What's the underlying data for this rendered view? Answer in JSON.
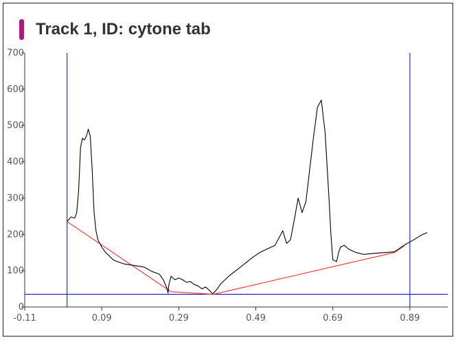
{
  "title": "Track 1, ID: cytone tab",
  "colors": {
    "title_bar": "#b0187c",
    "trace": "#000000",
    "baseline": "#ff3b3b",
    "markers": "#0000cc"
  },
  "chart_data": {
    "type": "line",
    "xlim": [
      -0.11,
      0.99
    ],
    "ylim": [
      0,
      700
    ],
    "xticks": [
      -0.11,
      0.09,
      0.29,
      0.49,
      0.69,
      0.89
    ],
    "xtick_labels": [
      "-0.11",
      "0.09",
      "0.29",
      "0.49",
      "0.69",
      "0.89"
    ],
    "yticks": [
      0,
      100,
      200,
      300,
      400,
      500,
      600,
      700
    ],
    "grid": false,
    "vertical_markers": [
      0.0,
      0.89
    ],
    "horizontal_marker": 35,
    "baseline": {
      "x": [
        0.0,
        0.27,
        0.38,
        0.85,
        0.875
      ],
      "y": [
        235,
        42,
        35,
        150,
        168
      ]
    },
    "series": [
      {
        "x": [
          0.0,
          0.01,
          0.02,
          0.025,
          0.03,
          0.035,
          0.04,
          0.045,
          0.05,
          0.055,
          0.06,
          0.065,
          0.07,
          0.075,
          0.08,
          0.085,
          0.09,
          0.1,
          0.11,
          0.12,
          0.13,
          0.15,
          0.17,
          0.2,
          0.22,
          0.24,
          0.25,
          0.26,
          0.262,
          0.264,
          0.27,
          0.28,
          0.29,
          0.3,
          0.31,
          0.32,
          0.33,
          0.34,
          0.35,
          0.36,
          0.37,
          0.375,
          0.378,
          0.38,
          0.39,
          0.4,
          0.42,
          0.45,
          0.48,
          0.5,
          0.52,
          0.54,
          0.56,
          0.57,
          0.58,
          0.59,
          0.6,
          0.61,
          0.62,
          0.63,
          0.64,
          0.65,
          0.66,
          0.67,
          0.68,
          0.685,
          0.69,
          0.7,
          0.705,
          0.71,
          0.72,
          0.73,
          0.75,
          0.77,
          0.8,
          0.85,
          0.875,
          0.9,
          0.92,
          0.935
        ],
        "y": [
          235,
          248,
          245,
          260,
          320,
          440,
          465,
          460,
          470,
          490,
          470,
          380,
          260,
          210,
          185,
          175,
          165,
          150,
          140,
          130,
          125,
          118,
          115,
          110,
          98,
          90,
          75,
          50,
          38,
          60,
          85,
          75,
          80,
          75,
          68,
          70,
          62,
          58,
          50,
          55,
          45,
          40,
          36,
          38,
          50,
          65,
          85,
          110,
          135,
          150,
          160,
          170,
          210,
          175,
          185,
          240,
          300,
          260,
          290,
          380,
          470,
          550,
          570,
          480,
          300,
          200,
          130,
          125,
          150,
          165,
          170,
          160,
          150,
          145,
          148,
          152,
          170,
          185,
          198,
          205
        ]
      }
    ]
  }
}
